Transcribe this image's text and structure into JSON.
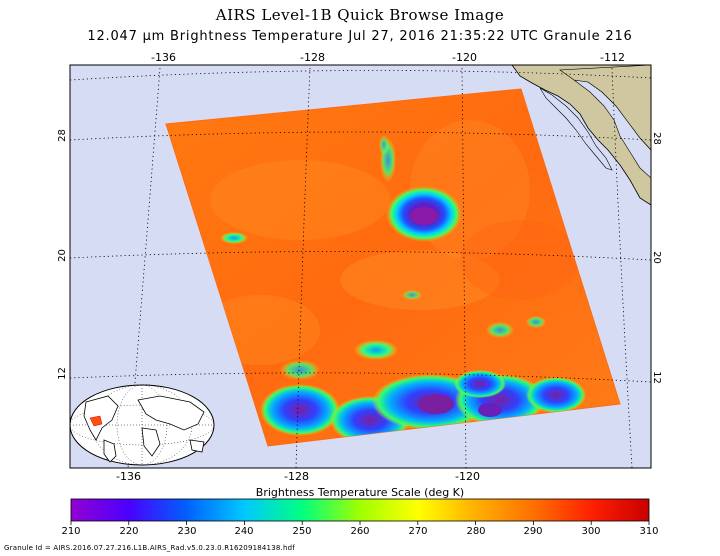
{
  "title": "AIRS Level-1B Quick Browse Image",
  "subtitle": "12.047 µm Brightness Temperature   Jul 27, 2016 21:35:22 UTC   Granule 216",
  "map": {
    "longitude_labels_top": [
      "-136",
      "-128",
      "-120",
      "-112"
    ],
    "longitude_labels_bottom": [
      "-136",
      "-128",
      "-120"
    ],
    "latitude_labels_left": [
      "28",
      "20",
      "12"
    ],
    "latitude_labels_right": [
      "28",
      "20",
      "12"
    ],
    "ocean_color": "#d7dcf5",
    "land_color": "#cfc7a0"
  },
  "colorbar": {
    "title": "Brightness Temperature Scale (deg K)",
    "ticks": [
      "210",
      "220",
      "230",
      "240",
      "250",
      "260",
      "270",
      "280",
      "290",
      "300",
      "310"
    ],
    "colors": [
      "#9400d3",
      "#4b00ff",
      "#0060ff",
      "#00c8ff",
      "#00ff80",
      "#a0ff00",
      "#ffff00",
      "#ffb000",
      "#ff7000",
      "#ff2000",
      "#c80000"
    ]
  },
  "granule_id": "Granule Id = AIRS.2016.07.27.216.L1B.AIRS_Rad.v5.0.23.0.R16209184138.hdf"
}
